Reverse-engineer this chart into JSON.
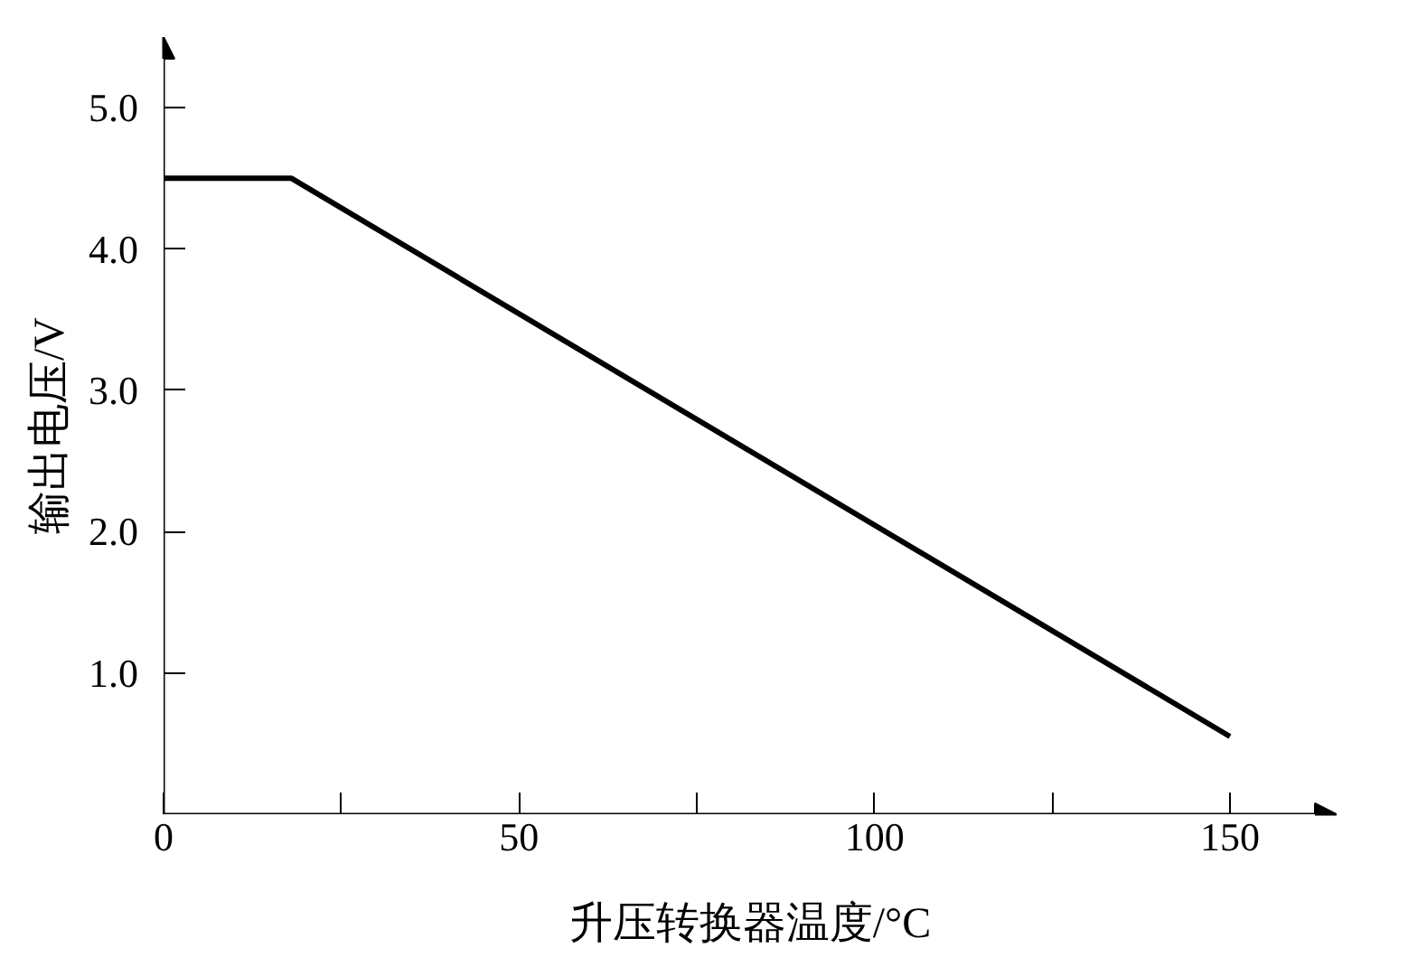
{
  "chart_data": {
    "type": "line",
    "xlabel": "升压转换器温度/°C",
    "ylabel": "输出电压/V",
    "x": [
      0,
      18,
      150
    ],
    "series": [
      {
        "color": "#000000",
        "values": [
          4.5,
          4.5,
          0.55
        ]
      }
    ],
    "xlim": [
      0,
      165
    ],
    "ylim": [
      0,
      5.5
    ],
    "xticks": [
      0,
      {
        "value": 25,
        "label": null
      },
      50,
      {
        "value": 75,
        "label": null
      },
      100,
      {
        "value": 125,
        "label": null
      },
      150
    ],
    "yticks": [
      {
        "value": 1,
        "label": "1.0"
      },
      {
        "value": 2,
        "label": "2.0"
      },
      {
        "value": 3,
        "label": "3.0"
      },
      {
        "value": 4,
        "label": "4.0"
      },
      {
        "value": 5,
        "label": "5.0"
      }
    ],
    "grid": false,
    "marker": "none",
    "line_style": "solid"
  }
}
